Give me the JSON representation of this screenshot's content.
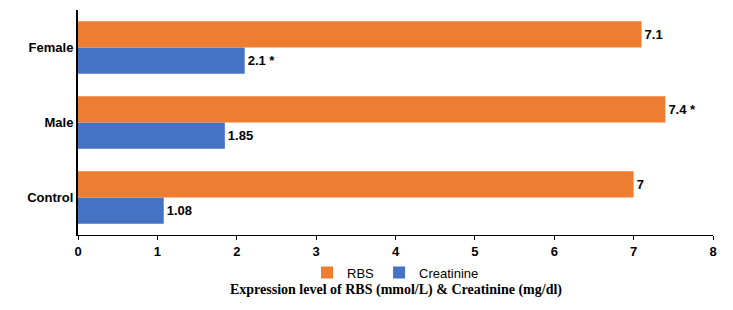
{
  "chart_data": {
    "type": "bar",
    "orientation": "horizontal",
    "x_label": "Expression level of RBS (mmol/L) & Creatinine (mg/dl)",
    "categories": [
      "Control",
      "Male",
      "Female"
    ],
    "series": [
      {
        "name": "RBS",
        "color": "#ED7D31",
        "values": [
          7,
          7.4,
          7.1
        ],
        "value_labels": [
          "7",
          "7.4 *",
          "7.1"
        ]
      },
      {
        "name": "Creatinine",
        "color": "#4472C4",
        "values": [
          1.08,
          1.85,
          2.1
        ],
        "value_labels": [
          "1.08",
          "1.85",
          "2.1 *"
        ]
      }
    ],
    "xlim": [
      0,
      8
    ],
    "xticks": [
      0,
      1,
      2,
      3,
      4,
      5,
      6,
      7,
      8
    ],
    "grid": false,
    "legend": "bottom",
    "data_labels": true
  }
}
